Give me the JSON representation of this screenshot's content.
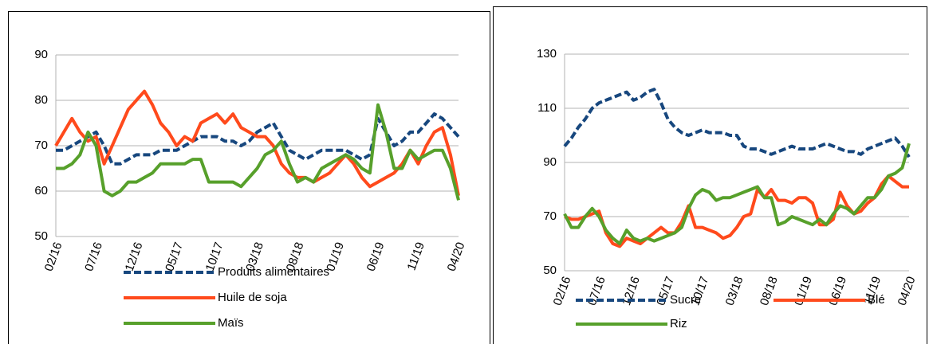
{
  "chart_data": [
    {
      "type": "line",
      "legend": "bottom",
      "grid": true,
      "categories": [
        "02/16",
        null,
        null,
        null,
        null,
        "07/16",
        null,
        null,
        null,
        null,
        "12/16",
        null,
        null,
        null,
        null,
        "05/17",
        null,
        null,
        null,
        null,
        "10/17",
        null,
        null,
        null,
        null,
        "03/18",
        null,
        null,
        null,
        null,
        "08/18",
        null,
        null,
        null,
        null,
        "01/19",
        null,
        null,
        null,
        null,
        "06/19",
        null,
        null,
        null,
        null,
        "11/19",
        null,
        null,
        null,
        null,
        "04/20"
      ],
      "ylim": [
        50,
        90
      ],
      "yticks": [
        50,
        60,
        70,
        80,
        90
      ],
      "series": [
        {
          "name": "Produits alimentaires",
          "color": "#17477e",
          "dashed": true,
          "values": [
            69,
            69,
            70,
            71,
            72,
            73,
            70,
            66,
            66,
            67,
            68,
            68,
            68,
            69,
            69,
            69,
            70,
            71,
            72,
            72,
            72,
            71,
            71,
            70,
            71,
            73,
            74,
            75,
            72,
            69,
            68,
            67,
            68,
            69,
            69,
            69,
            69,
            68,
            67,
            68,
            76,
            73,
            70,
            71,
            73,
            73,
            75,
            77,
            76,
            74,
            72
          ]
        },
        {
          "name": "Huile de soja",
          "color": "#ff4a1c",
          "dashed": false,
          "values": [
            70,
            73,
            76,
            73,
            71,
            72,
            66,
            70,
            74,
            78,
            80,
            82,
            79,
            75,
            73,
            70,
            72,
            71,
            75,
            76,
            77,
            75,
            77,
            74,
            73,
            72,
            72,
            70,
            66,
            64,
            63,
            63,
            62,
            63,
            64,
            66,
            68,
            66,
            63,
            61,
            62,
            63,
            64,
            66,
            69,
            66,
            70,
            73,
            74,
            68,
            59
          ]
        },
        {
          "name": "Maïs",
          "color": "#57a02b",
          "dashed": false,
          "values": [
            65,
            65,
            66,
            68,
            73,
            70,
            60,
            59,
            60,
            62,
            62,
            63,
            64,
            66,
            66,
            66,
            66,
            67,
            67,
            62,
            62,
            62,
            62,
            61,
            63,
            65,
            68,
            69,
            71,
            66,
            62,
            63,
            62,
            65,
            66,
            67,
            68,
            67,
            65,
            64,
            79,
            73,
            65,
            65,
            69,
            67,
            68,
            69,
            69,
            65,
            58
          ]
        }
      ]
    },
    {
      "type": "line",
      "legend": "bottom",
      "grid": true,
      "categories": [
        "02/16",
        null,
        null,
        null,
        null,
        "07/16",
        null,
        null,
        null,
        null,
        "12/16",
        null,
        null,
        null,
        null,
        "05/17",
        null,
        null,
        null,
        null,
        "10/17",
        null,
        null,
        null,
        null,
        "03/18",
        null,
        null,
        null,
        null,
        "08/18",
        null,
        null,
        null,
        null,
        "01/19",
        null,
        null,
        null,
        null,
        "06/19",
        null,
        null,
        null,
        null,
        "11/19",
        null,
        null,
        null,
        null,
        "04/20"
      ],
      "ylim": [
        50,
        130
      ],
      "yticks": [
        50,
        70,
        90,
        110,
        130
      ],
      "series": [
        {
          "name": "Sucre",
          "color": "#17477e",
          "dashed": true,
          "values": [
            96,
            99,
            103,
            106,
            110,
            112,
            113,
            114,
            115,
            116,
            113,
            114,
            116,
            117,
            112,
            106,
            103,
            101,
            100,
            101,
            102,
            101,
            101,
            101,
            100,
            100,
            96,
            95,
            95,
            94,
            93,
            94,
            95,
            96,
            95,
            95,
            95,
            96,
            97,
            96,
            95,
            94,
            94,
            93,
            95,
            96,
            97,
            98,
            99,
            96,
            92
          ]
        },
        {
          "name": "Blé",
          "color": "#ff4a1c",
          "dashed": false,
          "values": [
            70,
            69,
            69,
            70,
            71,
            72,
            64,
            60,
            59,
            62,
            61,
            60,
            62,
            64,
            66,
            64,
            64,
            68,
            74,
            66,
            66,
            65,
            64,
            62,
            63,
            66,
            70,
            71,
            80,
            77,
            80,
            76,
            76,
            75,
            77,
            77,
            75,
            67,
            67,
            69,
            79,
            74,
            71,
            72,
            75,
            77,
            82,
            85,
            83,
            81,
            81
          ]
        },
        {
          "name": "Riz",
          "color": "#57a02b",
          "dashed": false,
          "values": [
            71,
            66,
            66,
            70,
            73,
            70,
            65,
            62,
            60,
            65,
            62,
            61,
            62,
            61,
            62,
            63,
            64,
            66,
            73,
            78,
            80,
            79,
            76,
            77,
            77,
            78,
            79,
            80,
            81,
            77,
            77,
            67,
            68,
            70,
            69,
            68,
            67,
            69,
            67,
            71,
            74,
            73,
            71,
            74,
            77,
            77,
            80,
            85,
            86,
            88,
            97
          ]
        }
      ]
    }
  ]
}
